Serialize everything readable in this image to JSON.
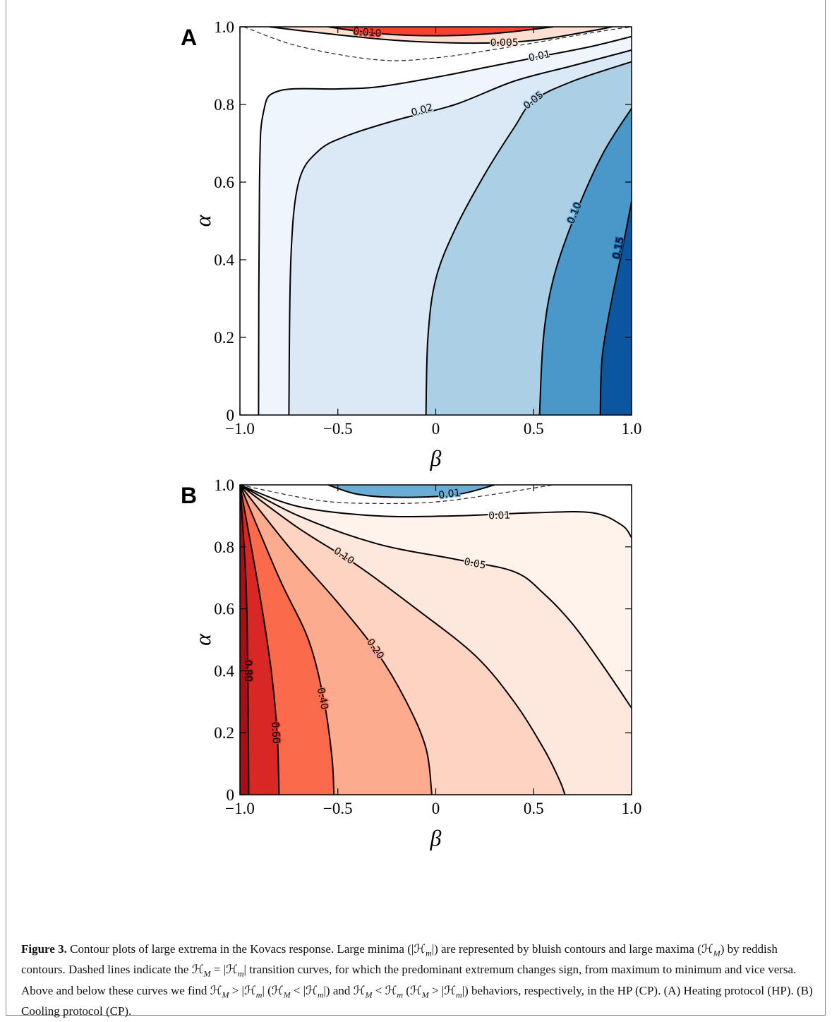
{
  "chart_data": [
    {
      "type": "contour",
      "panel_label": "A",
      "xlabel": "β",
      "ylabel": "α",
      "xlim": [
        -1,
        1
      ],
      "ylim": [
        0,
        1
      ],
      "xticks": [
        {
          "value": -1,
          "label": "−1.0"
        },
        {
          "value": -0.5,
          "label": "−0.5"
        },
        0,
        0.5,
        {
          "value": 1,
          "label": "1.0"
        }
      ],
      "yticks": [
        0,
        0.2,
        0.4,
        0.6,
        0.8,
        {
          "value": 1,
          "label": "1.0"
        }
      ],
      "contour_sets": [
        {
          "levels": [
            0.01,
            0.02,
            0.05,
            0.1,
            0.15
          ],
          "level_labels": [
            "0.01",
            "0.02",
            "0.05",
            "0.10",
            "0.15"
          ],
          "colors": [
            "#eef5fc",
            "#dbe9f6",
            "#abd0e6",
            "#4a98c9",
            "#0c56a0"
          ]
        },
        {
          "levels": [
            0.005,
            0.01
          ],
          "level_labels": [
            "0.005",
            "0.010"
          ],
          "colors": [
            "#fde0d2",
            "#f14432"
          ]
        }
      ]
    },
    {
      "type": "contour",
      "panel_label": "B",
      "xlabel": "β",
      "ylabel": "α",
      "xlim": [
        -1,
        1
      ],
      "ylim": [
        0,
        1
      ],
      "xticks": [
        {
          "value": -1,
          "label": "−1.0"
        },
        {
          "value": -0.5,
          "label": "−0.5"
        },
        0,
        0.5,
        {
          "value": 1,
          "label": "1.0"
        }
      ],
      "yticks": [
        0,
        0.2,
        0.4,
        0.6,
        0.8,
        {
          "value": 1,
          "label": "1.0"
        }
      ],
      "contour_sets": [
        {
          "levels": [
            0.01,
            0.05,
            0.1,
            0.2,
            0.4,
            0.6,
            0.8
          ],
          "level_labels": [
            "0.01",
            "0.05",
            "0.10",
            "0.20",
            "0.40",
            "0.60",
            "0.80"
          ],
          "colors": [
            "#fff3ec",
            "#fee7dc",
            "#fdd4c2",
            "#fcab8f",
            "#fb6a4a",
            "#d92723",
            "#a50f15"
          ]
        },
        {
          "levels": [
            0.01
          ],
          "level_labels": [
            "0.01"
          ],
          "colors": [
            "#6aaed6"
          ]
        }
      ]
    }
  ],
  "caption": {
    "label": "Figure 3.",
    "runs": [
      " Contour plots of large extrema in the Kovacs response. Large minima (|ℋ",
      {
        "sub": "m"
      },
      "|) are represented by bluish contours and large maxima (ℋ",
      {
        "sub": "M"
      },
      ") by reddish contours. Dashed lines indicate the ℋ",
      {
        "sub": "M"
      },
      " = |ℋ",
      {
        "sub": "m"
      },
      "| transition curves, for which the predominant extremum changes sign, from maximum to minimum and vice versa. Above and below these curves we find ℋ",
      {
        "sub": "M"
      },
      " > |ℋ",
      {
        "sub": "m"
      },
      "| (ℋ",
      {
        "sub": "M"
      },
      " < |ℋ",
      {
        "sub": "m"
      },
      "|) and ℋ",
      {
        "sub": "M"
      },
      " < ℋ",
      {
        "sub": "m"
      },
      " (ℋ",
      {
        "sub": "M"
      },
      " > |ℋ",
      {
        "sub": "m"
      },
      "|) behaviors, respectively, in the HP (CP). (A) Heating protocol (HP). (B) Cooling protocol (CP)."
    ]
  }
}
